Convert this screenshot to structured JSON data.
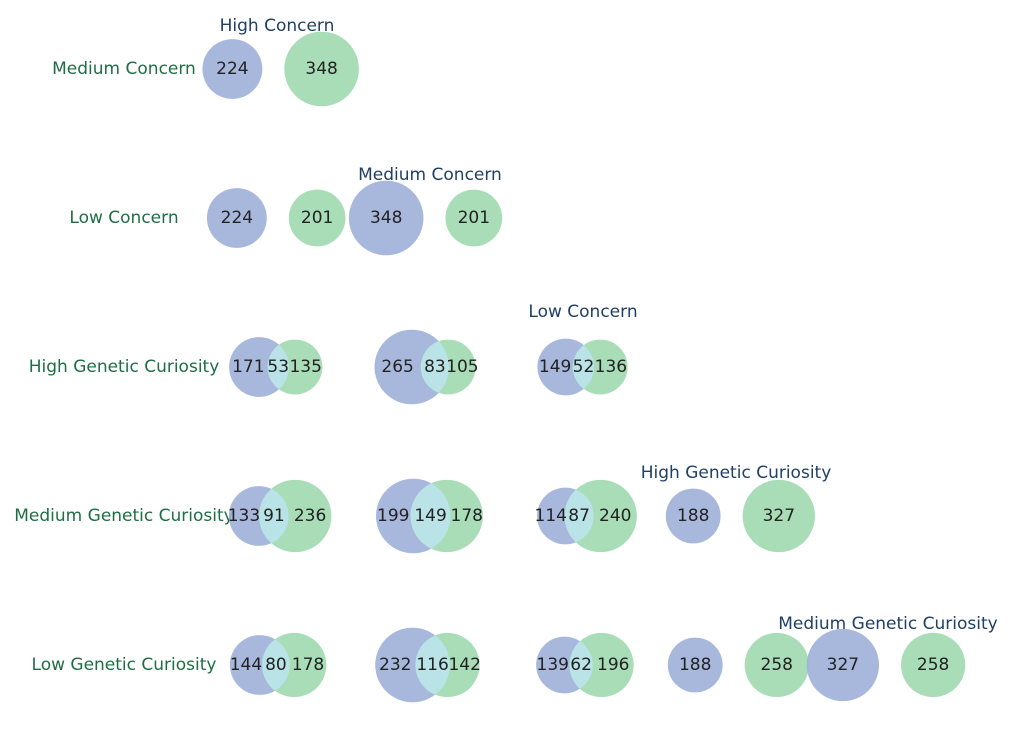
{
  "chart_data": {
    "type": "venn-matrix",
    "title": "",
    "categories": [
      "High Concern",
      "Medium Concern",
      "Low Concern",
      "High Genetic Curiosity",
      "Medium Genetic Curiosity",
      "Low Genetic Curiosity"
    ],
    "row_labels": [
      "Medium Concern",
      "Low Concern",
      "High Genetic Curiosity",
      "Medium Genetic Curiosity",
      "Low Genetic Curiosity"
    ],
    "column_labels": [
      "High Concern",
      "Medium Concern",
      "Low Concern",
      "High Genetic Curiosity",
      "Medium Genetic Curiosity"
    ],
    "cells": [
      {
        "row": 0,
        "col": 0,
        "left_only": 224,
        "overlap": 0,
        "right_only": 348
      },
      {
        "row": 1,
        "col": 0,
        "left_only": 224,
        "overlap": 0,
        "right_only": 201
      },
      {
        "row": 1,
        "col": 1,
        "left_only": 348,
        "overlap": 0,
        "right_only": 201
      },
      {
        "row": 2,
        "col": 0,
        "left_only": 171,
        "overlap": 53,
        "right_only": 135
      },
      {
        "row": 2,
        "col": 1,
        "left_only": 265,
        "overlap": 83,
        "right_only": 105
      },
      {
        "row": 2,
        "col": 2,
        "left_only": 149,
        "overlap": 52,
        "right_only": 136
      },
      {
        "row": 3,
        "col": 0,
        "left_only": 133,
        "overlap": 91,
        "right_only": 236
      },
      {
        "row": 3,
        "col": 1,
        "left_only": 199,
        "overlap": 149,
        "right_only": 178
      },
      {
        "row": 3,
        "col": 2,
        "left_only": 114,
        "overlap": 87,
        "right_only": 240
      },
      {
        "row": 3,
        "col": 3,
        "left_only": 188,
        "overlap": 0,
        "right_only": 327
      },
      {
        "row": 4,
        "col": 0,
        "left_only": 144,
        "overlap": 80,
        "right_only": 178
      },
      {
        "row": 4,
        "col": 1,
        "left_only": 232,
        "overlap": 116,
        "right_only": 142
      },
      {
        "row": 4,
        "col": 2,
        "left_only": 139,
        "overlap": 62,
        "right_only": 196
      },
      {
        "row": 4,
        "col": 3,
        "left_only": 188,
        "overlap": 0,
        "right_only": 258
      },
      {
        "row": 4,
        "col": 4,
        "left_only": 327,
        "overlap": 0,
        "right_only": 258
      }
    ]
  },
  "colors": {
    "left_circle": "#9fb0d9",
    "right_circle": "#9fd9b0",
    "overlap": "#b9e3e6",
    "row_label": "#1e6e44",
    "column_label": "#1f3f66",
    "number": "#222222"
  }
}
